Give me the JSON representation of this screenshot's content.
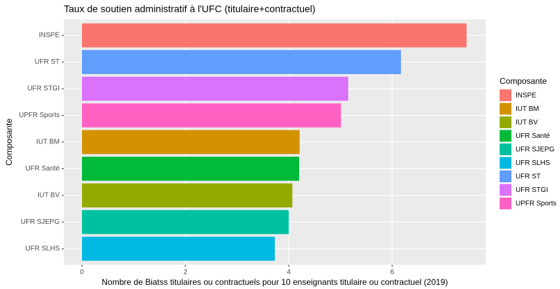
{
  "chart_data": {
    "type": "barh",
    "title": "Taux de soutien administratif à l'UFC (titulaire+contractuel)",
    "x_label": "Nombre de Biatss titulaires ou contractuels pour 10 enseignants titulaire ou contractuel (2019)",
    "y_label": "Composante",
    "categories": [
      "INSPE",
      "UFR ST",
      "UFR STGI",
      "UPFR Sports",
      "IUT BM",
      "UFR Santé",
      "IUT BV",
      "UFR SJEPG",
      "UFR SLHS"
    ],
    "values": [
      7.44,
      6.17,
      5.15,
      5.01,
      4.21,
      4.2,
      4.07,
      4.0,
      3.73
    ],
    "colors": [
      "#F8766D",
      "#619CFF",
      "#DB72FB",
      "#FF61C3",
      "#D39200",
      "#00BA38",
      "#93AA00",
      "#00C19F",
      "#00B9E3"
    ],
    "xlim": [
      -0.35,
      7.81
    ],
    "xticks": [
      0,
      2,
      4,
      6
    ],
    "grid": true,
    "legend": {
      "title": "Composante",
      "position": "right",
      "items": [
        {
          "name": "INSPE",
          "color": "#F8766D"
        },
        {
          "name": "IUT BM",
          "color": "#D39200"
        },
        {
          "name": "IUT BV",
          "color": "#93AA00"
        },
        {
          "name": "UFR Santé",
          "color": "#00BA38"
        },
        {
          "name": "UFR SJEPG",
          "color": "#00C19F"
        },
        {
          "name": "UFR SLHS",
          "color": "#00B9E3"
        },
        {
          "name": "UFR ST",
          "color": "#619CFF"
        },
        {
          "name": "UFR STGI",
          "color": "#DB72FB"
        },
        {
          "name": "UPFR Sports",
          "color": "#FF61C3"
        }
      ]
    }
  }
}
